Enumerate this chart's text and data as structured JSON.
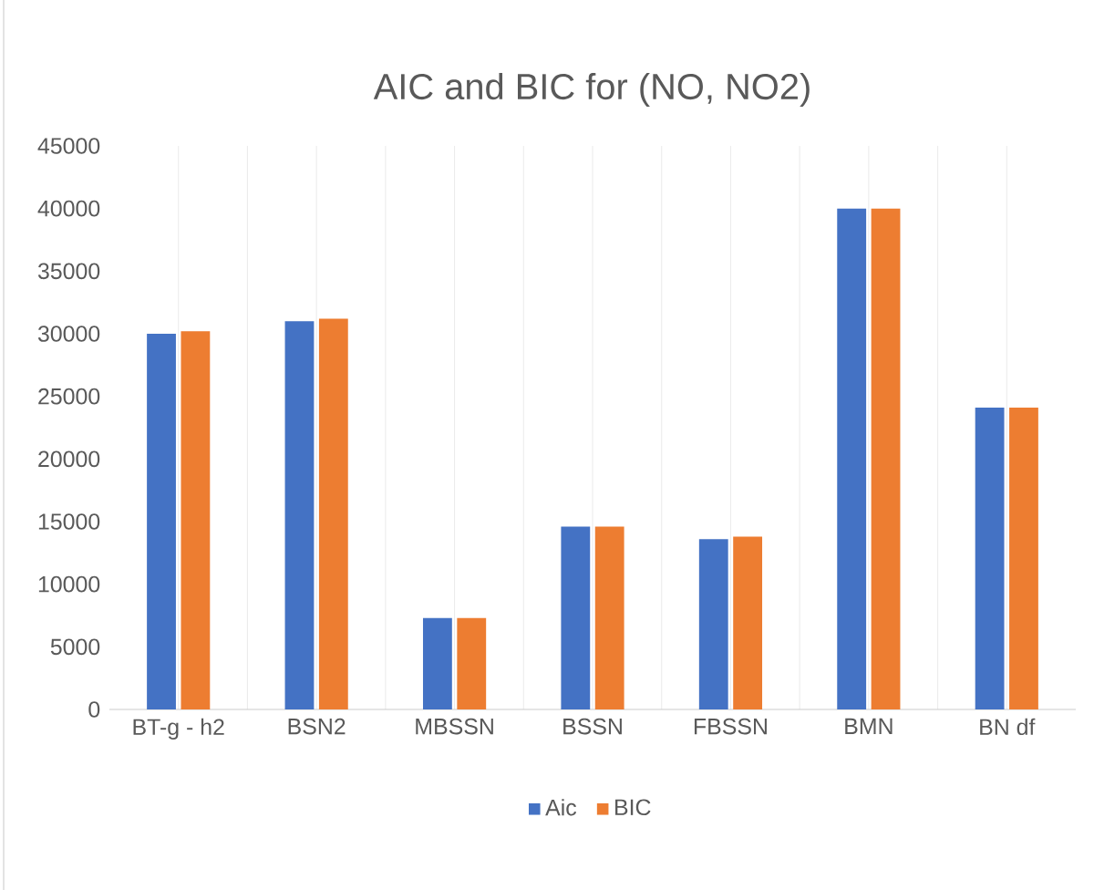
{
  "chart_data": {
    "type": "bar",
    "title": "AIC and BIC for (NO, NO2)",
    "categories": [
      "BT-g - h2",
      "BSN2",
      "MBSSN",
      "BSSN",
      "FBSSN",
      "BMN",
      "BN df"
    ],
    "series": [
      {
        "name": "Aic",
        "color": "#4472c4",
        "values": [
          30000,
          31000,
          7300,
          14600,
          13600,
          40000,
          24100
        ]
      },
      {
        "name": "BIC",
        "color": "#ed7d31",
        "values": [
          30200,
          31200,
          7300,
          14600,
          13800,
          40000,
          24100
        ]
      }
    ],
    "ylim": [
      0,
      45000
    ],
    "yticks": [
      0,
      5000,
      10000,
      15000,
      20000,
      25000,
      30000,
      35000,
      40000,
      45000
    ],
    "grid": "x",
    "legend": "bottom"
  }
}
